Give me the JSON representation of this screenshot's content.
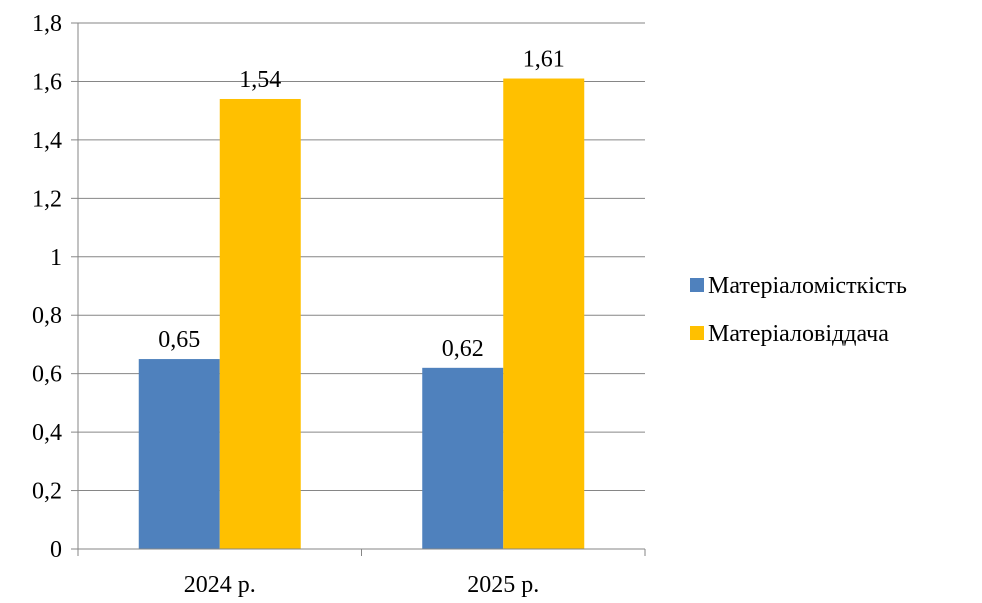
{
  "chart_data": {
    "type": "bar",
    "title": "",
    "xlabel": "",
    "ylabel": "",
    "categories": [
      "2024 р.",
      "2025 р."
    ],
    "series": [
      {
        "name": "Матеріаломісткість",
        "values": [
          0.65,
          0.62
        ],
        "labels": [
          "0,65",
          "0,62"
        ],
        "color": "#4F81BD"
      },
      {
        "name": "Матеріаловіддача",
        "values": [
          1.54,
          1.61
        ],
        "labels": [
          "1,54",
          "1,61"
        ],
        "color": "#FFC000"
      }
    ],
    "ylim": [
      0,
      1.8
    ],
    "yticks": [
      0,
      0.2,
      0.4,
      0.6,
      0.8,
      1,
      1.2,
      1.4,
      1.6,
      1.8
    ],
    "ytick_labels": [
      "0",
      "0,2",
      "0,4",
      "0,6",
      "0,8",
      "1",
      "1,2",
      "1,4",
      "1,6",
      "1,8"
    ],
    "grid": true,
    "legend_position": "right"
  }
}
